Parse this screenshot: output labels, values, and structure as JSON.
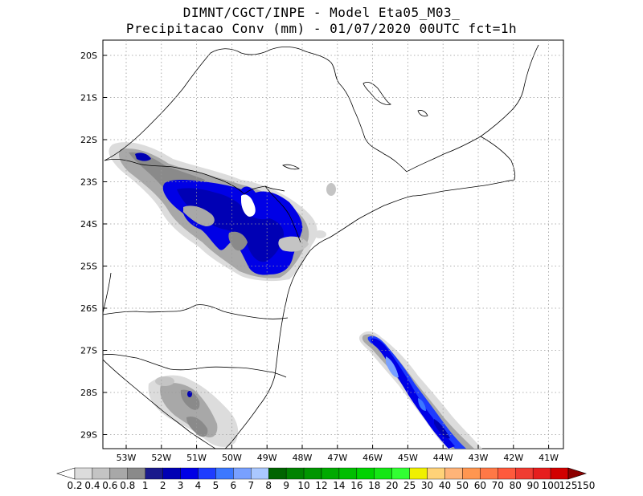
{
  "title": {
    "line1": "DIMNT/CGCT/INPE  -   Model Eta05_M03_",
    "line2": "Precipitacao Conv (mm) - 01/07/2020 00UTC fct=1h"
  },
  "map": {
    "lat_labels": [
      "20S",
      "21S",
      "22S",
      "23S",
      "24S",
      "25S",
      "26S",
      "27S",
      "28S",
      "29S"
    ],
    "lon_labels": [
      "53W",
      "52W",
      "51W",
      "50W",
      "49W",
      "48W",
      "47W",
      "46W",
      "45W",
      "44W",
      "43W",
      "42W",
      "41W"
    ],
    "grid": "dotted"
  },
  "colorbar": {
    "labels": [
      "0.2",
      "0.4",
      "0.6",
      "0.8",
      "1",
      "2",
      "3",
      "4",
      "5",
      "6",
      "7",
      "8",
      "9",
      "10",
      "12",
      "14",
      "16",
      "18",
      "20",
      "25",
      "30",
      "40",
      "50",
      "60",
      "70",
      "80",
      "90",
      "100",
      "125",
      "150"
    ],
    "colors": [
      "#dcdcdc",
      "#c4c4c4",
      "#a8a8a8",
      "#8a8a8a",
      "#1a1a8c",
      "#0000b4",
      "#0000e6",
      "#1e3cff",
      "#3c78ff",
      "#78a0ff",
      "#aac8ff",
      "#006400",
      "#008200",
      "#009600",
      "#00aa00",
      "#00be00",
      "#00d200",
      "#14e614",
      "#32ff32",
      "#f0f000",
      "#ffd278",
      "#ffb478",
      "#ff9650",
      "#ff7846",
      "#ff5a3c",
      "#f03c32",
      "#e61e1e",
      "#d20000",
      "#b40000",
      "#8c0000"
    ]
  }
}
